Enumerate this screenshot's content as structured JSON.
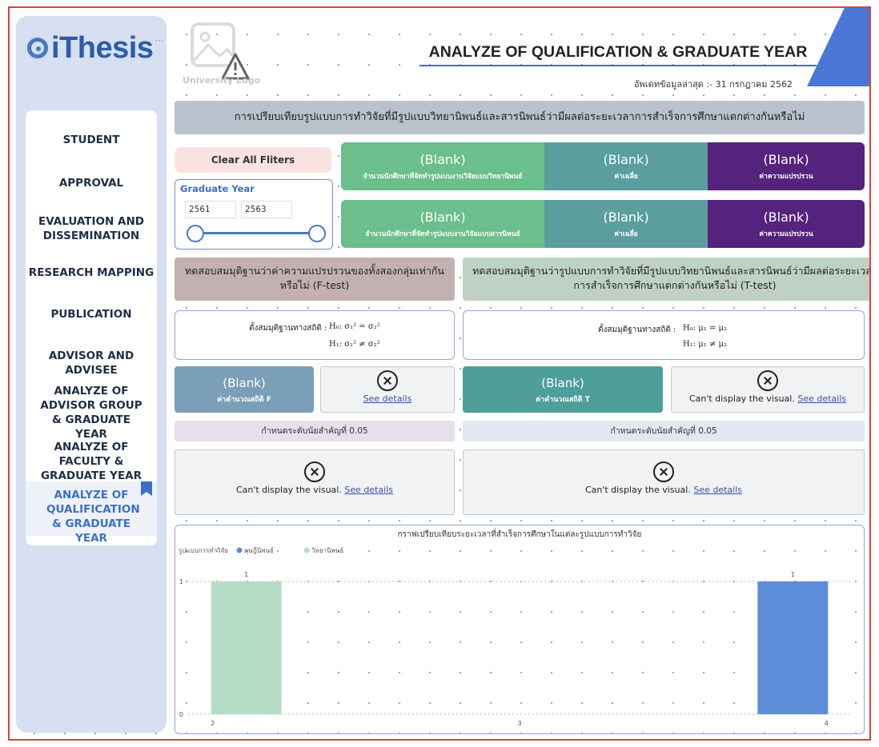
{
  "brand": {
    "name": "iThesis"
  },
  "university_logo_label": "University Logo",
  "sidebar": {
    "items": [
      {
        "label": "STUDENT"
      },
      {
        "label": "APPROVAL"
      },
      {
        "label": "EVALUATION AND DISSEMINATION"
      },
      {
        "label": "RESEARCH MAPPING"
      },
      {
        "label": "PUBLICATION"
      },
      {
        "label": "ADVISOR AND ADVISEE"
      },
      {
        "label": "ANALYZE OF ADVISOR GROUP & GRADUATE YEAR"
      },
      {
        "label": "ANALYZE OF FACULTY & GRADUATE YEAR"
      },
      {
        "label": "ANALYZE OF QUALIFICATION & GRADUATE YEAR",
        "active": true
      }
    ]
  },
  "header": {
    "title": "ANALYZE OF QUALIFICATION & GRADUATE YEAR",
    "update_text": "อัพเดทข้อมูลล่าสุด :- 31 กรกฎาคม 2562"
  },
  "banner": "การเปรียบเทียบรูปแบบการทำวิจัยที่มีรูปแบบวิทยานิพนธ์และสารนิพนธ์ว่ามีผลต่อระยะเวลาการสำเร็จการศึกษาแตกต่างกันหรือไม่",
  "filters": {
    "clear_label": "Clear All Fliters",
    "graduate_year": {
      "title": "Graduate Year",
      "from": "2561",
      "to": "2563"
    }
  },
  "kpi_rows": [
    [
      {
        "value": "(Blank)",
        "label": "จำนวนนักศึกษาที่จัดทำรูปแบบงานวิจัยแบบวิทยานิพนธ์"
      },
      {
        "value": "(Blank)",
        "label": "ค่าเฉลี่ย"
      },
      {
        "value": "(Blank)",
        "label": "ค่าความแปรปรวน"
      }
    ],
    [
      {
        "value": "(Blank)",
        "label": "จำนวนนักศึกษาที่จัดทำรูปแบบงานวิจัยแบบสารนิพนธ์"
      },
      {
        "value": "(Blank)",
        "label": "ค่าเฉลี่ย"
      },
      {
        "value": "(Blank)",
        "label": "ค่าความแปรปรวน"
      }
    ]
  ],
  "tests": {
    "f_title": "ทดสอบสมมุติฐานว่าค่าความแปรปรวนของทั้งสองกลุ่มเท่ากันหรือไม่ (F-test)",
    "t_title": "ทดสอบสมมุติฐานว่ารูปแบบการทำวิจัยที่มีรูปแบบวิทยานิพนธ์และสารนิพนธ์ว่ามีผลต่อระยะเวลาการสำเร็จการศึกษาแตกต่างกันหรือไม่ (T-test)",
    "f_hyp_label": "ตั้งสมมุติฐานทางสถิติ :",
    "f_h0": "H₀:  σ₁² = σ₂²",
    "f_h1": "H₁:  σ₁² ≠ σ₂²",
    "t_hyp_label": "ตั้งสมมุติฐานทางสถิติ :",
    "t_h0": "H₀:  μ₁ = μ₂",
    "t_h1": "H₁:  μ₁ ≠ μ₂",
    "f_stat": {
      "value": "(Blank)",
      "label": "ค่าคำนวณสถิติ F"
    },
    "t_stat": {
      "value": "(Blank)",
      "label": "ค่าคำนวณสถิติ T"
    },
    "sig_f": "กำหนดระดับนัยสำคัญที่ 0.05",
    "sig_t": "กำหนดระดับนัยสำคัญที่ 0.05"
  },
  "errors": {
    "cant_display": "Can't display the visual.",
    "see_details": "See details"
  },
  "colors": {
    "accent": "#3b6fc9",
    "kpi_green": "#6abf8c",
    "kpi_teal": "#5a9e9e",
    "kpi_purple": "#55237e",
    "series_blue": "#5b8dd9",
    "series_green": "#b5dcc7"
  },
  "chart_data": {
    "type": "bar",
    "title": "กราฟเปรียบเทียบระยะเวลาที่สำเร็จการศึกษาในแต่ละรูปแบบการทำวิจัย",
    "legend_title": "รูปแบบการทำวิจัย",
    "legend_position": "top-left",
    "series": [
      {
        "name": "ดุษฎีนิพนธ์",
        "color": "#5b8dd9",
        "points": [
          {
            "x": 4,
            "y": 1
          }
        ]
      },
      {
        "name": "วิทยานิพนธ์",
        "color": "#b5dcc7",
        "points": [
          {
            "x": 2,
            "y": 1
          }
        ]
      }
    ],
    "x_ticks": [
      "2",
      "3",
      "4"
    ],
    "y_ticks": [
      "0",
      "1"
    ],
    "xlim": [
      2,
      4
    ],
    "ylim": [
      0,
      1
    ],
    "data_labels": true
  }
}
